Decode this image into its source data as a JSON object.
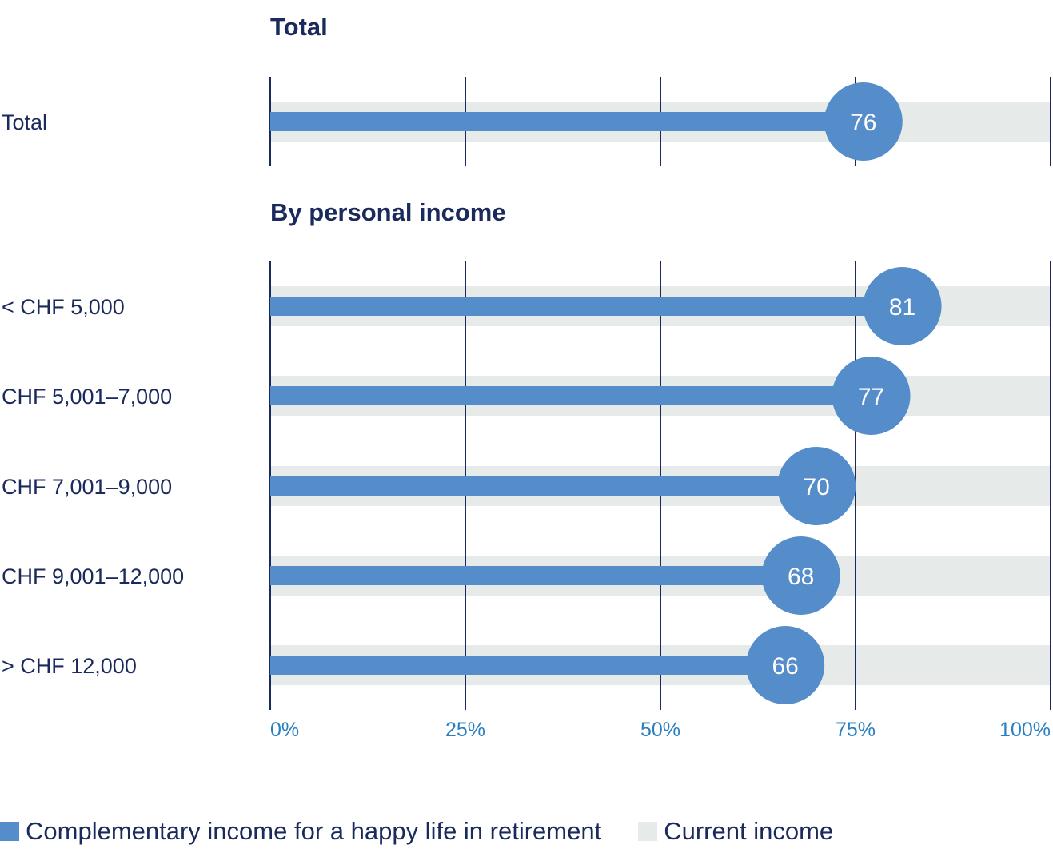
{
  "chart_data": {
    "type": "bar",
    "orientation": "horizontal",
    "sections": [
      {
        "title": "Total",
        "categories": [
          "Total"
        ],
        "values": [
          76
        ]
      },
      {
        "title": "By personal income",
        "categories": [
          "< CHF 5,000",
          "CHF 5,001–7,000",
          "CHF 7,001–9,000",
          "CHF 9,001–12,000",
          "> CHF 12,000"
        ],
        "values": [
          81,
          77,
          70,
          68,
          66
        ]
      }
    ],
    "background_value": 100,
    "xlim": [
      0,
      100
    ],
    "xticks": [
      0,
      25,
      50,
      75,
      100
    ],
    "xtick_labels": [
      "0%",
      "25%",
      "50%",
      "75%",
      "100%"
    ],
    "grid": true,
    "legend_position": "bottom-left",
    "series": [
      {
        "name": "Complementary income for a happy life in retirement",
        "color": "#558dca"
      },
      {
        "name": "Current income",
        "color": "#e6ebe9"
      }
    ],
    "colors": {
      "text": "#1b2a5c",
      "tick": "#2a7fc0",
      "grid": "#1b2a5c"
    }
  }
}
